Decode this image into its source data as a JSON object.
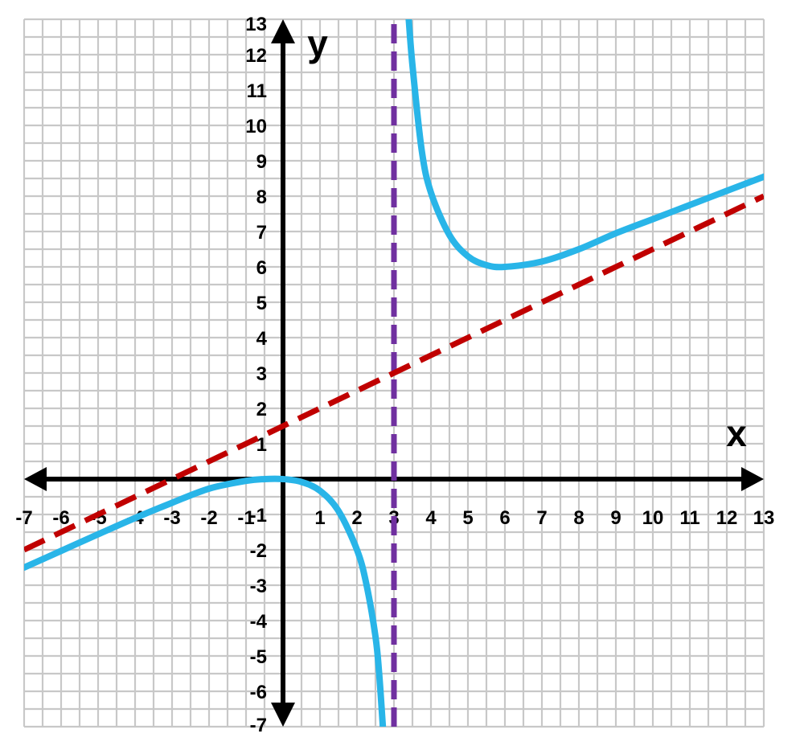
{
  "chart_data": {
    "type": "line",
    "title": "",
    "xlabel": "x",
    "ylabel": "y",
    "xlim": [
      -7,
      13
    ],
    "ylim": [
      -7,
      13
    ],
    "grid": true,
    "minor_grid_step": 0.5,
    "x_ticks": [
      "-7",
      "-6",
      "-5",
      "-4",
      "-3",
      "-2",
      "-1",
      "1",
      "2",
      "3",
      "4",
      "5",
      "6",
      "7",
      "8",
      "9",
      "10",
      "11",
      "12",
      "13"
    ],
    "y_ticks": [
      "13",
      "12",
      "11",
      "10",
      "9",
      "8",
      "7",
      "6",
      "5",
      "4",
      "3",
      "2",
      "1",
      "-1",
      "-2",
      "-3",
      "-4",
      "-5",
      "-6",
      "-7"
    ],
    "series": [
      {
        "color": "#29B5E8",
        "style": "solid",
        "segments": [
          {
            "x": [
              -7,
              -6,
              -5,
              -4,
              -3,
              -2,
              -1,
              -0.5,
              0,
              0.5,
              1,
              1.5,
              2,
              2.25,
              2.5,
              2.6,
              2.7
            ],
            "y": [
              -2.5,
              -2.03,
              -1.56,
              -1.1,
              -0.67,
              -0.27,
              -0.05,
              0,
              0,
              -0.08,
              -0.33,
              -0.9,
              -2,
              -2.95,
              -4.45,
              -5.5,
              -7
            ]
          },
          {
            "x": [
              3.4,
              3.5,
              3.75,
              4,
              4.5,
              5,
              5.5,
              6,
              7,
              8,
              9,
              10,
              11,
              12,
              13
            ],
            "y": [
              13,
              11.7,
              9.3,
              8.1,
              6.9,
              6.3,
              6.05,
              6,
              6.15,
              6.5,
              6.95,
              7.35,
              7.75,
              8.15,
              8.55
            ]
          }
        ]
      },
      {
        "color": "#C00000",
        "style": "dashed",
        "segments": [
          {
            "x": [
              -7,
              13
            ],
            "y": [
              -2,
              8
            ]
          }
        ]
      },
      {
        "color": "#7030A0",
        "style": "dashed",
        "segments": [
          {
            "x": [
              3,
              3
            ],
            "y": [
              -7,
              13
            ]
          }
        ]
      }
    ]
  }
}
